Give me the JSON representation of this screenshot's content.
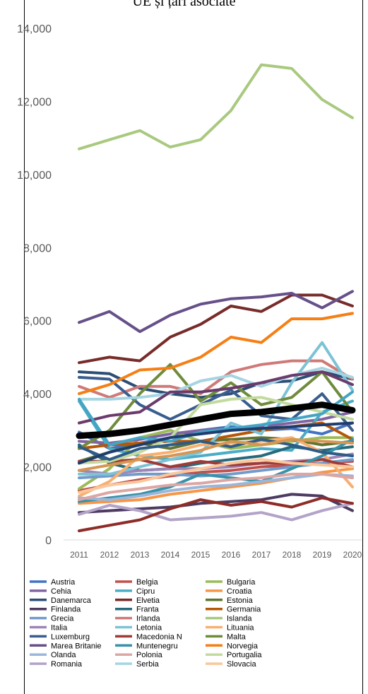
{
  "chart_data": {
    "type": "line",
    "title": "UE și țări asociate",
    "x": [
      "2011",
      "2012",
      "2013",
      "2014",
      "2015",
      "2016",
      "2017",
      "2018",
      "2019",
      "2020"
    ],
    "ylim": [
      0,
      14000
    ],
    "yticks": [
      "0",
      "2,000",
      "4,000",
      "6,000",
      "8,000",
      "10,000",
      "12,000",
      "14,000"
    ],
    "ytick_values": [
      0,
      2000,
      4000,
      6000,
      8000,
      10000,
      12000,
      14000
    ],
    "grid": false,
    "legend_position": "bottom",
    "series": [
      {
        "name": "Austria",
        "color": "#4472c4",
        "values": [
          2950,
          2500,
          2650,
          2800,
          3000,
          3100,
          3000,
          3050,
          2900,
          3200
        ]
      },
      {
        "name": "Belgia",
        "color": "#c0504d",
        "values": [
          1350,
          1500,
          1650,
          1750,
          1850,
          1900,
          2000,
          2050,
          2100,
          2150
        ]
      },
      {
        "name": "Bulgaria",
        "color": "#9bbb59",
        "values": [
          1400,
          1950,
          2800,
          3000,
          2700,
          2500,
          2600,
          2700,
          2800,
          2800
        ]
      },
      {
        "name": "Cehia",
        "color": "#8064a2",
        "values": [
          2700,
          2650,
          2750,
          2900,
          3000,
          3050,
          3100,
          3200,
          3300,
          3500
        ]
      },
      {
        "name": "Cipru",
        "color": "#4bacc6",
        "values": [
          3800,
          2500,
          2300,
          2200,
          2300,
          2400,
          2500,
          2450,
          3500,
          3800
        ]
      },
      {
        "name": "Croatia",
        "color": "#f79646",
        "values": [
          1000,
          1050,
          1100,
          1250,
          1350,
          1450,
          1550,
          1700,
          1850,
          1950
        ]
      },
      {
        "name": "Danemarca",
        "color": "#2c4d75",
        "values": [
          4600,
          4550,
          4150,
          4000,
          3900,
          4000,
          4300,
          4350,
          4600,
          4400
        ]
      },
      {
        "name": "Elvetia",
        "color": "#772c2a",
        "values": [
          4850,
          5000,
          4900,
          5550,
          5900,
          6400,
          6250,
          6700,
          6700,
          6400
        ]
      },
      {
        "name": "Estonia",
        "color": "#5f7530",
        "values": [
          2150,
          2400,
          2650,
          2500,
          2700,
          2750,
          2800,
          2750,
          2600,
          2700
        ]
      },
      {
        "name": "Finlanda",
        "color": "#4d3b62",
        "values": [
          750,
          800,
          850,
          900,
          1000,
          1050,
          1100,
          1250,
          1200,
          800
        ]
      },
      {
        "name": "Franta",
        "color": "#276a7c",
        "values": [
          2600,
          2100,
          1900,
          1950,
          2100,
          2200,
          2300,
          2550,
          2450,
          2550
        ]
      },
      {
        "name": "Germania",
        "color": "#b65708",
        "values": [
          2500,
          2600,
          2650,
          2700,
          2700,
          2850,
          3000,
          3100,
          3200,
          2750
        ]
      },
      {
        "name": "Grecia",
        "color": "#729aca",
        "values": [
          1700,
          1750,
          1800,
          1800,
          1750,
          1800,
          1900,
          2000,
          2100,
          2200
        ]
      },
      {
        "name": "Irlanda",
        "color": "#ce7a78",
        "values": [
          4200,
          3900,
          4200,
          4200,
          4000,
          4600,
          4800,
          4900,
          4900,
          4400
        ]
      },
      {
        "name": "Islanda",
        "color": "#a9c97f",
        "values": [
          10700,
          10950,
          11200,
          10750,
          10950,
          11750,
          13000,
          12900,
          12050,
          11550
        ]
      },
      {
        "name": "Italia",
        "color": "#9d85b6",
        "values": [
          1900,
          1800,
          1900,
          1950,
          1950,
          2000,
          2100,
          2150,
          2200,
          2350
        ]
      },
      {
        "name": "Letonia",
        "color": "#7dc2d5",
        "values": [
          1800,
          1800,
          2000,
          2200,
          2400,
          3200,
          2900,
          4300,
          5400,
          4100
        ]
      },
      {
        "name": "Lituania",
        "color": "#f8af6f",
        "values": [
          1200,
          1600,
          2300,
          2400,
          2600,
          2650,
          2700,
          2800,
          2400,
          1450
        ]
      },
      {
        "name": "Luxemburg",
        "color": "#3a5d8f",
        "values": [
          4450,
          4400,
          3700,
          3300,
          3700,
          4100,
          3400,
          3300,
          4000,
          3000
        ]
      },
      {
        "name": "Macedonia N",
        "color": "#9e3b38",
        "values": [
          2150,
          2150,
          2200,
          2000,
          2150,
          2050,
          2100,
          2100,
          2200,
          2000
        ]
      },
      {
        "name": "Malta",
        "color": "#6f8b3c",
        "values": [
          2500,
          3000,
          4000,
          4800,
          3800,
          4300,
          3700,
          3900,
          4600,
          3500
        ]
      },
      {
        "name": "Marea Britanie",
        "color": "#66508a",
        "values": [
          5950,
          6250,
          5700,
          6150,
          6450,
          6600,
          6650,
          6750,
          6350,
          6800
        ]
      },
      {
        "name": "Muntenegru",
        "color": "#3892a9",
        "values": [
          1050,
          1150,
          1250,
          1450,
          1800,
          1700,
          1600,
          1950,
          2300,
          2750
        ]
      },
      {
        "name": "Norvegia",
        "color": "#f57f15",
        "values": [
          4000,
          4250,
          4650,
          4700,
          5000,
          5550,
          5400,
          6050,
          6050,
          6200
        ]
      },
      {
        "name": "Olanda",
        "color": "#9ab6db",
        "values": [
          1150,
          1100,
          1200,
          1350,
          1450,
          1500,
          1600,
          1700,
          1800,
          1750
        ]
      },
      {
        "name": "Polonia",
        "color": "#dba6a4",
        "values": [
          1100,
          1300,
          1400,
          1500,
          1550,
          1650,
          1700,
          1800,
          1800,
          1700
        ]
      },
      {
        "name": "Portugalia",
        "color": "#c3da9e",
        "values": [
          2100,
          2150,
          2400,
          2800,
          3700,
          3850,
          3900,
          3700,
          3500,
          3300
        ]
      },
      {
        "name": "Romania",
        "color": "#b3a3c8",
        "values": [
          700,
          950,
          800,
          550,
          600,
          650,
          750,
          550,
          800,
          1000
        ]
      },
      {
        "name": "Serbia",
        "color": "#a5d5e2",
        "values": [
          3850,
          3850,
          3900,
          4000,
          4350,
          4500,
          4200,
          4500,
          4700,
          4450
        ]
      },
      {
        "name": "Slovacia",
        "color": "#fac79b",
        "values": [
          1300,
          1500,
          1600,
          1800,
          1950,
          2100,
          2200,
          2100,
          2050,
          2000
        ]
      },
      {
        "name": "",
        "color": "#8e2c28",
        "values": [
          250,
          400,
          550,
          850,
          1100,
          950,
          1050,
          900,
          1150,
          1000
        ]
      },
      {
        "name": "",
        "color": "#2e5b87",
        "values": [
          2550,
          2200,
          2500,
          2600,
          2700,
          2550,
          2750,
          2600,
          2400,
          2300
        ]
      },
      {
        "name": "",
        "color": "#6b3b6b",
        "values": [
          3200,
          3400,
          3500,
          4050,
          4050,
          4150,
          4300,
          4500,
          4600,
          4250
        ]
      },
      {
        "name": "",
        "color": "#43a5c4",
        "values": [
          3850,
          2600,
          2800,
          2700,
          2950,
          3050,
          3150,
          3300,
          3450,
          4050
        ]
      },
      {
        "name": "",
        "color": "#1f3d6e",
        "values": [
          2100,
          2400,
          2600,
          2800,
          2900,
          3000,
          3050,
          3100,
          3150,
          3200
        ]
      },
      {
        "name": "",
        "color": "#d59653",
        "values": [
          1900,
          2050,
          2200,
          2300,
          2450,
          2700,
          2600,
          2750,
          2700,
          2650
        ]
      },
      {
        "name": "",
        "color": "#000000",
        "values": [
          2850,
          2900,
          3000,
          3150,
          3300,
          3450,
          3500,
          3600,
          3700,
          3550
        ],
        "bold": true
      }
    ]
  },
  "legend": [
    [
      "Austria",
      "Belgia",
      "Bulgaria"
    ],
    [
      "Cehia",
      "Cipru",
      "Croatia"
    ],
    [
      "Danemarca",
      "Elvetia",
      "Estonia"
    ],
    [
      "Finlanda",
      "Franta",
      "Germania"
    ],
    [
      "Grecia",
      "Irlanda",
      "Islanda"
    ],
    [
      "Italia",
      "Letonia",
      "Lituania"
    ],
    [
      "Luxemburg",
      "Macedonia N",
      "Malta"
    ],
    [
      "Marea Britanie",
      "Muntenegru",
      "Norvegia"
    ],
    [
      "Olanda",
      "Polonia",
      "Portugalia"
    ],
    [
      "Romania",
      "Serbia",
      "Slovacia"
    ]
  ]
}
